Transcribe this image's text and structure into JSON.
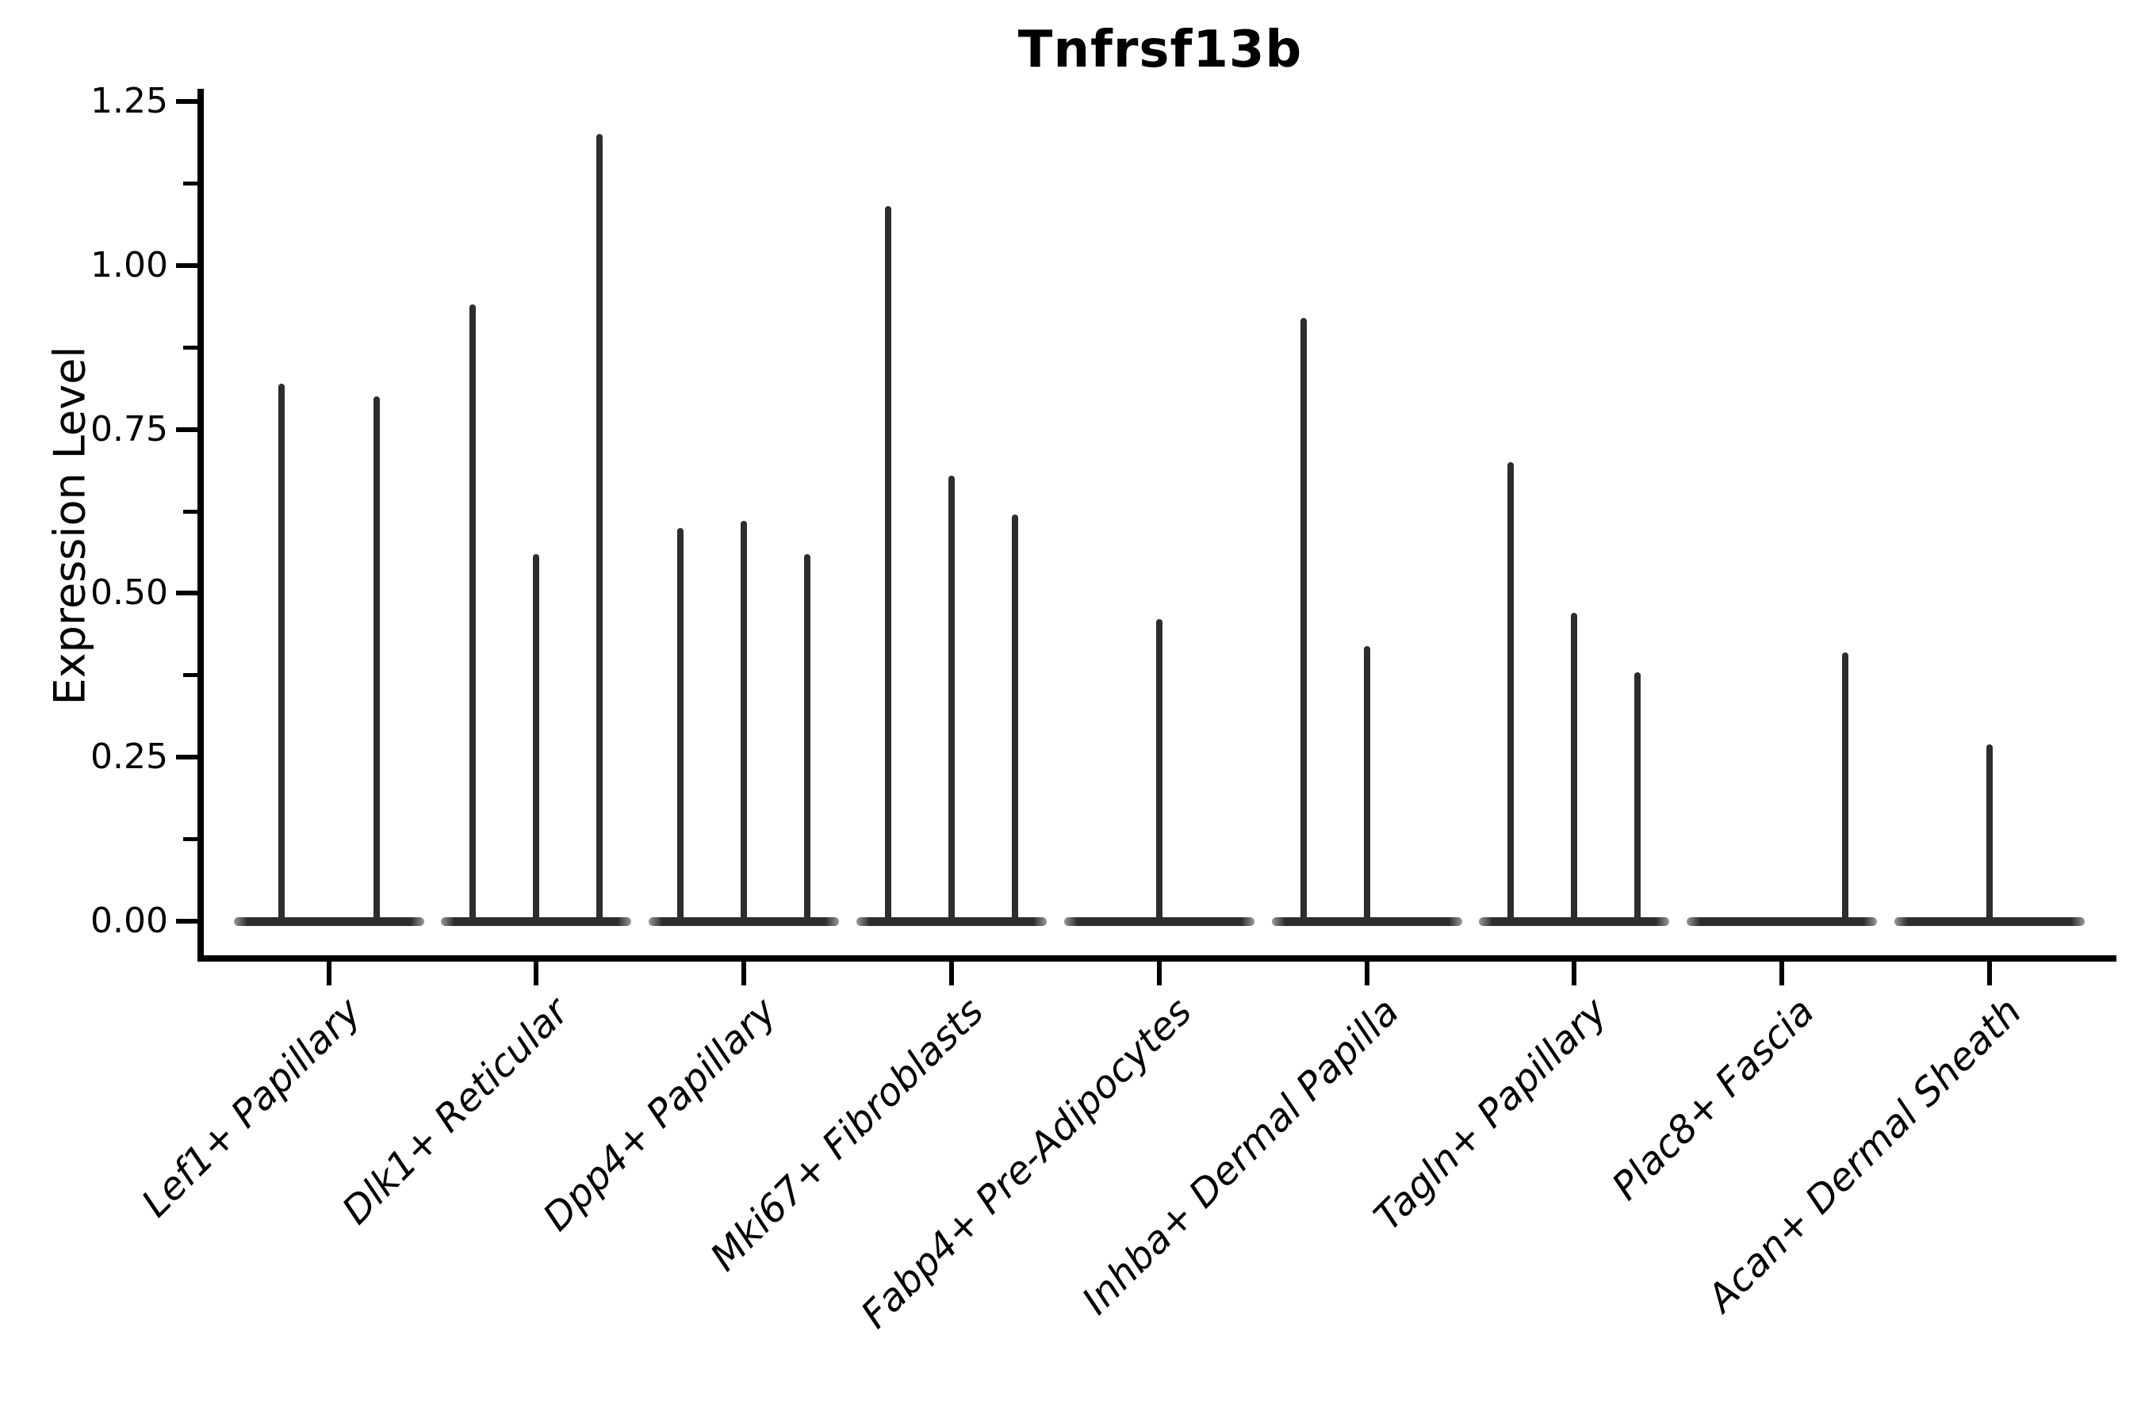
{
  "chart_data": {
    "type": "violin",
    "title": "Tnfrsf13b",
    "ylabel": "Expression Level",
    "xlabel": "",
    "ylim": [
      0,
      1.25
    ],
    "grid": false,
    "legend": "none",
    "background": "#ffffff",
    "ink_color": "#000000",
    "violin_color": "#2d2d2d",
    "y_axis": {
      "major_ticks": [
        {
          "label": "1.25",
          "value": 1.25
        },
        {
          "label": "1.00",
          "value": 1.0
        },
        {
          "label": "0.75",
          "value": 0.75
        },
        {
          "label": "0.50",
          "value": 0.5
        },
        {
          "label": "0.25",
          "value": 0.25
        },
        {
          "label": "0.00",
          "value": 0.0
        }
      ],
      "minor_tick_values": [
        1.125,
        0.875,
        0.625,
        0.375,
        0.125
      ]
    },
    "categories": [
      "Lef1+ Papillary",
      "Dlk1+ Reticular",
      "Dpp4+ Papillary",
      "Mki67+ Fibroblasts",
      "Fabp4+ Pre-Adipocytes",
      "Inhba+ Dermal Papilla",
      "Tagln+ Papillary",
      "Plac8+ Fascia",
      "Acan+ Dermal Sheath"
    ],
    "note": "Violin plot; every cluster's distribution is collapsed at expression 0 (flat dark baseline bar) with thin vertical density spikes whose tips mark the maximum expression values listed below.",
    "groups": [
      {
        "category": "Lef1+ Papillary",
        "spikes": [
          {
            "pos_frac": 0.25,
            "peak": 0.82
          },
          {
            "pos_frac": 0.75,
            "peak": 0.8
          }
        ]
      },
      {
        "category": "Dlk1+ Reticular",
        "spikes": [
          {
            "pos_frac": 0.167,
            "peak": 0.94
          },
          {
            "pos_frac": 0.5,
            "peak": 0.56
          },
          {
            "pos_frac": 0.833,
            "peak": 1.2
          }
        ]
      },
      {
        "category": "Dpp4+ Papillary",
        "spikes": [
          {
            "pos_frac": 0.167,
            "peak": 0.6
          },
          {
            "pos_frac": 0.5,
            "peak": 0.61
          },
          {
            "pos_frac": 0.833,
            "peak": 0.56
          }
        ]
      },
      {
        "category": "Mki67+ Fibroblasts",
        "spikes": [
          {
            "pos_frac": 0.167,
            "peak": 1.09
          },
          {
            "pos_frac": 0.5,
            "peak": 0.68
          },
          {
            "pos_frac": 0.833,
            "peak": 0.62
          }
        ]
      },
      {
        "category": "Fabp4+ Pre-Adipocytes",
        "spikes": [
          {
            "pos_frac": 0.5,
            "peak": 0.46
          }
        ]
      },
      {
        "category": "Inhba+ Dermal Papilla",
        "spikes": [
          {
            "pos_frac": 0.167,
            "peak": 0.92
          },
          {
            "pos_frac": 0.5,
            "peak": 0.42
          }
        ]
      },
      {
        "category": "Tagln+ Papillary",
        "spikes": [
          {
            "pos_frac": 0.167,
            "peak": 0.7
          },
          {
            "pos_frac": 0.5,
            "peak": 0.47
          },
          {
            "pos_frac": 0.833,
            "peak": 0.38
          }
        ]
      },
      {
        "category": "Plac8+ Fascia",
        "spikes": [
          {
            "pos_frac": 0.833,
            "peak": 0.41
          }
        ]
      },
      {
        "category": "Acan+ Dermal Sheath",
        "spikes": [
          {
            "pos_frac": 0.5,
            "peak": 0.27
          }
        ]
      }
    ]
  }
}
